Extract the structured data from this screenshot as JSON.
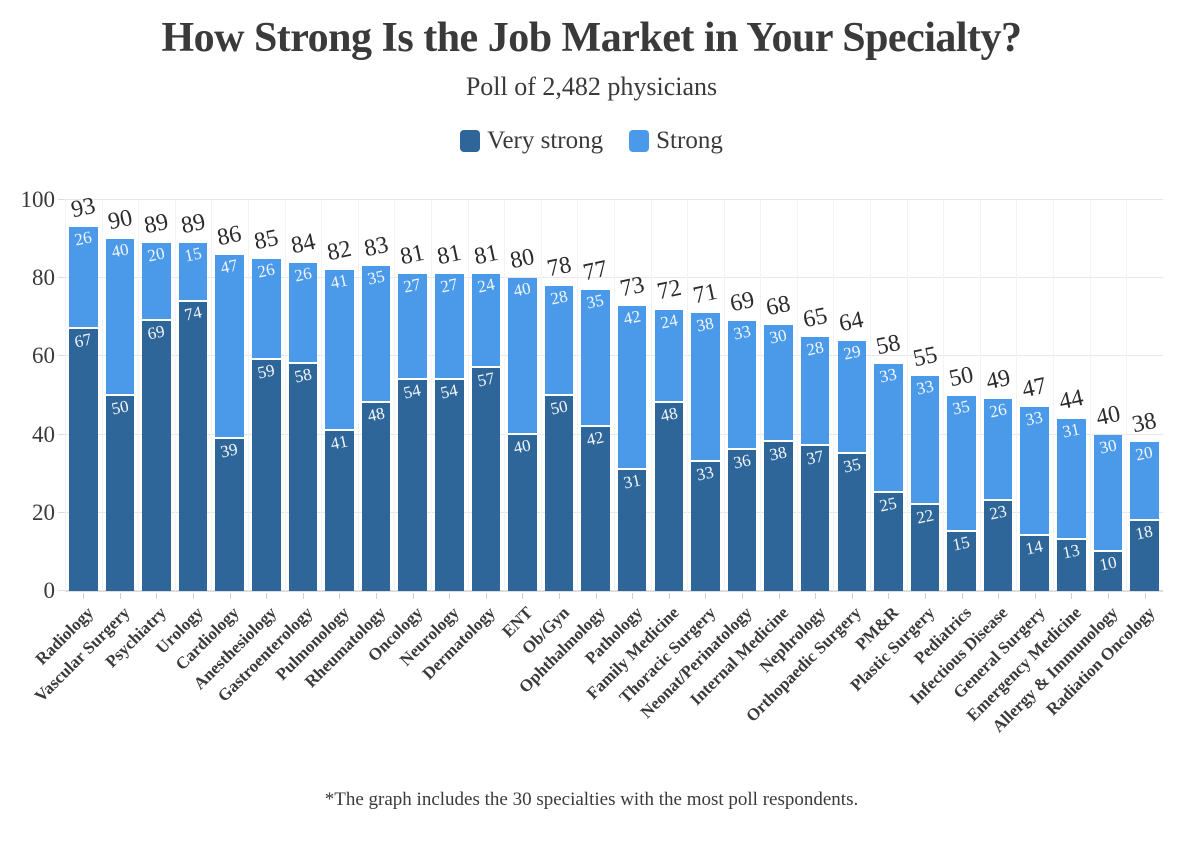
{
  "header": {
    "title": "How Strong Is the Job Market in Your Specialty?",
    "subtitle": "Poll of 2,482 physicians"
  },
  "legend": [
    {
      "label": "Very strong",
      "color": "#2e6699"
    },
    {
      "label": "Strong",
      "color": "#4a9ae9"
    }
  ],
  "footnote": "*The graph includes the 30 specialties with the most poll respondents.",
  "chart_data": {
    "type": "bar",
    "stacked": true,
    "title": "How Strong Is the Job Market in Your Specialty?",
    "subtitle": "Poll of 2,482 physicians",
    "xlabel": "",
    "ylabel": "",
    "ylim": [
      0,
      100
    ],
    "yticks": [
      0,
      20,
      40,
      60,
      80,
      100
    ],
    "grid": true,
    "legend_position": "top",
    "categories": [
      "Radiology",
      "Vascular Surgery",
      "Psychiatry",
      "Urology",
      "Cardiology",
      "Anesthesiology",
      "Gastroenterology",
      "Pulmonology",
      "Rheumatology",
      "Oncology",
      "Neurology",
      "Dermatology",
      "ENT",
      "Ob/Gyn",
      "Ophthalmology",
      "Pathology",
      "Family Medicine",
      "Thoracic Surgery",
      "Neonat/Perinatology",
      "Internal Medicine",
      "Nephrology",
      "Orthopaedic Surgery",
      "PM&R",
      "Plastic Surgery",
      "Pediatrics",
      "Infectious Disease",
      "General Surgery",
      "Emergency Medicine",
      "Allergy & Immunology",
      "Radiation Oncology"
    ],
    "series": [
      {
        "name": "Very strong",
        "color": "#2e6699",
        "values": [
          67,
          50,
          69,
          74,
          39,
          59,
          58,
          41,
          48,
          54,
          54,
          57,
          40,
          50,
          42,
          31,
          48,
          33,
          36,
          38,
          37,
          35,
          25,
          22,
          15,
          23,
          14,
          13,
          10,
          18
        ]
      },
      {
        "name": "Strong",
        "color": "#4a9ae9",
        "values": [
          26,
          40,
          20,
          15,
          47,
          26,
          26,
          41,
          35,
          27,
          27,
          24,
          40,
          28,
          35,
          42,
          24,
          38,
          33,
          30,
          28,
          29,
          33,
          33,
          35,
          26,
          33,
          31,
          30,
          20
        ]
      }
    ],
    "totals": [
      93,
      90,
      89,
      89,
      86,
      85,
      84,
      82,
      83,
      81,
      81,
      81,
      80,
      78,
      77,
      73,
      72,
      71,
      69,
      68,
      65,
      64,
      58,
      55,
      50,
      49,
      47,
      44,
      40,
      38
    ]
  }
}
